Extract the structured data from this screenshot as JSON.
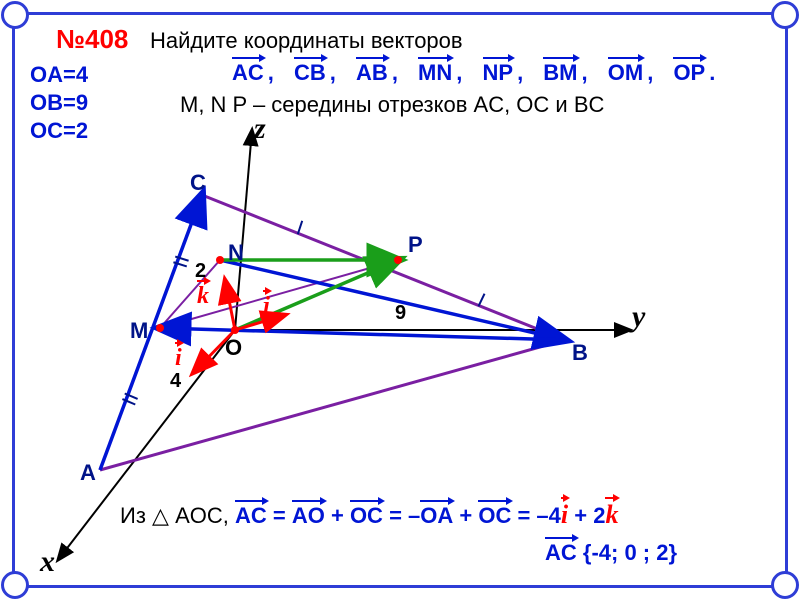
{
  "colors": {
    "frame": "#2e3dd6",
    "red": "#ff0000",
    "purple": "#7a1fa2",
    "blue": "#0015d4",
    "darkblue": "#001388",
    "green": "#1a9e1a",
    "black": "#000000"
  },
  "problemNumber": "№408",
  "header1": "Найдите координаты векторов",
  "vectorsList": [
    "AC,",
    "CB,",
    "AB,",
    "MN,",
    "NP,",
    "BM,",
    "OM,",
    "OP."
  ],
  "given": [
    "OA=4",
    "OB=9",
    "OC=2"
  ],
  "midpointText": "M, N  P – середины отрезков AC, OC и BC",
  "axes": {
    "x": "x",
    "y": "y",
    "z": "z"
  },
  "points": {
    "A": "A",
    "B": "B",
    "C": "C",
    "M": "M",
    "N": "N",
    "P": "P",
    "O": "O"
  },
  "distances": {
    "OA": "4",
    "OB": "9",
    "OC": "2"
  },
  "unitVecs": {
    "i": "i",
    "j": "j",
    "k": "k"
  },
  "solution": {
    "prefix": "Из",
    "triangle": "AOC,",
    "eq1": "AC = AO + OC",
    "eq2": "= –OA + OC = –4",
    "i": "i",
    "plus": " + 2",
    "k": "k",
    "result": "AC {-4; 0 ; 2}"
  },
  "geom": {
    "O": [
      235,
      330
    ],
    "A": [
      100,
      470
    ],
    "B": [
      565,
      340
    ],
    "C": [
      202,
      195
    ],
    "M": [
      160,
      328
    ],
    "N": [
      220,
      260
    ],
    "P": [
      398,
      260
    ],
    "xEnd": [
      58,
      560
    ],
    "yEnd": [
      630,
      330
    ],
    "zEnd": [
      252,
      130
    ],
    "iEnd": [
      193,
      373
    ],
    "jEnd": [
      285,
      315
    ],
    "kEnd": [
      225,
      280
    ]
  },
  "lineWidths": {
    "axis": 2,
    "triangle": 3,
    "vector": 3.5,
    "unit": 3
  }
}
